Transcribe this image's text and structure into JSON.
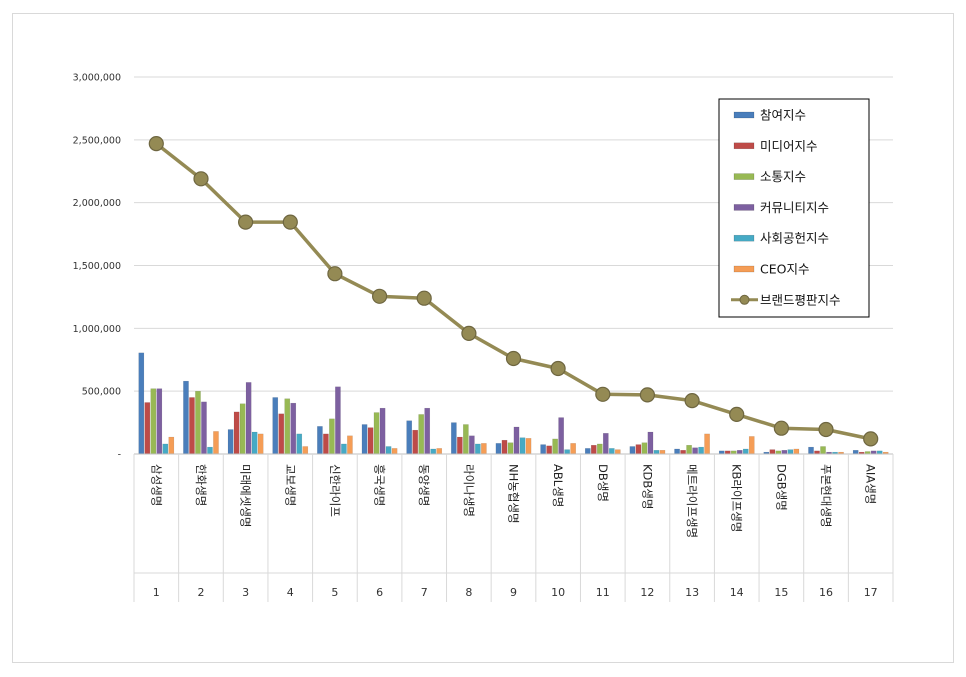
{
  "chart_data": {
    "type": "bar",
    "title": "",
    "xlabel": "",
    "ylabel": "",
    "ylim": [
      0,
      3000000
    ],
    "yticks": [
      0,
      500000,
      1000000,
      1500000,
      2000000,
      2500000,
      3000000
    ],
    "ytick_labels": [
      "-",
      "500,000",
      "1,000,000",
      "1,500,000",
      "2,000,000",
      "2,500,000",
      "3,000,000"
    ],
    "grid": true,
    "legend_position": "top-right",
    "categories": [
      "삼성생명",
      "한화생명",
      "미래에셋생명",
      "교보생명",
      "신한라이프",
      "흥국생명",
      "동양생명",
      "라이나생명",
      "NH농협생명",
      "ABL생명",
      "DB생명",
      "KDB생명",
      "메트라이프생명",
      "KB라이프생명",
      "DGB생명",
      "푸본현대생명",
      "AIA생명"
    ],
    "ranks": [
      "1",
      "2",
      "3",
      "4",
      "5",
      "6",
      "7",
      "8",
      "9",
      "10",
      "11",
      "12",
      "13",
      "14",
      "15",
      "16",
      "17"
    ],
    "series": [
      {
        "name": "참여지수",
        "color": "#4a7ebb",
        "values": [
          805000,
          580000,
          195000,
          450000,
          220000,
          235000,
          265000,
          250000,
          85000,
          75000,
          45000,
          60000,
          40000,
          25000,
          15000,
          55000,
          30000
        ]
      },
      {
        "name": "미디어지수",
        "color": "#be4b48",
        "values": [
          410000,
          450000,
          335000,
          320000,
          160000,
          210000,
          190000,
          135000,
          110000,
          65000,
          70000,
          75000,
          30000,
          25000,
          35000,
          25000,
          15000
        ]
      },
      {
        "name": "소통지수",
        "color": "#98b954",
        "values": [
          520000,
          500000,
          400000,
          440000,
          280000,
          330000,
          315000,
          235000,
          90000,
          120000,
          80000,
          90000,
          70000,
          25000,
          25000,
          60000,
          20000
        ]
      },
      {
        "name": "커뮤니티지수",
        "color": "#7d60a0",
        "values": [
          520000,
          415000,
          570000,
          405000,
          535000,
          365000,
          365000,
          145000,
          215000,
          290000,
          165000,
          175000,
          50000,
          30000,
          30000,
          15000,
          25000
        ]
      },
      {
        "name": "사회공헌지수",
        "color": "#46aac5",
        "values": [
          80000,
          55000,
          175000,
          160000,
          80000,
          60000,
          40000,
          80000,
          130000,
          35000,
          45000,
          30000,
          55000,
          40000,
          35000,
          15000,
          25000
        ]
      },
      {
        "name": "CEO지수",
        "color": "#f59d56",
        "values": [
          135000,
          180000,
          160000,
          60000,
          145000,
          45000,
          45000,
          85000,
          125000,
          85000,
          35000,
          30000,
          160000,
          140000,
          40000,
          15000,
          15000
        ]
      }
    ],
    "line_series": {
      "name": "브랜드평판지수",
      "color": "#948a54",
      "values": [
        2470000,
        2190000,
        1845000,
        1845000,
        1435000,
        1255000,
        1240000,
        960000,
        760000,
        680000,
        475000,
        470000,
        425000,
        315000,
        205000,
        195000,
        120000
      ]
    }
  }
}
